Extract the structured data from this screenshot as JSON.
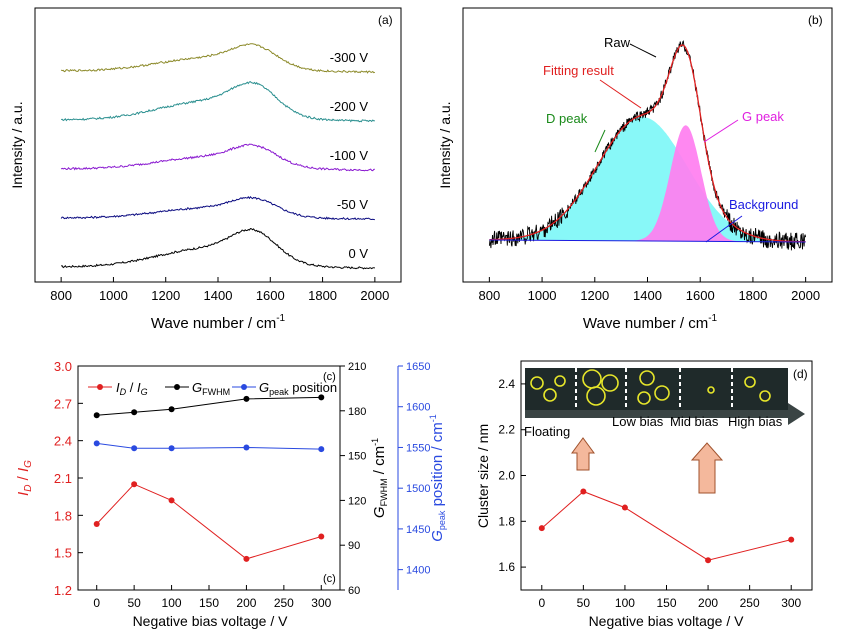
{
  "chart_data": [
    {
      "panel": "(a)",
      "type": "line",
      "xlabel": "Wave number / cm",
      "xlabel_sup": "-1",
      "ylabel": "Intensity / a.u.",
      "xlim": [
        700,
        2100
      ],
      "xticks": [
        800,
        1000,
        1200,
        1400,
        1600,
        1800,
        2000
      ],
      "y_ticks_shown": false,
      "series": [
        {
          "name": "0 V",
          "color": "#000000",
          "offset": 0.0,
          "amp": 0.62
        },
        {
          "name": "-50 V",
          "color": "#0a0a80",
          "offset": 1.0,
          "amp": 0.34
        },
        {
          "name": "-100 V",
          "color": "#8a1ad0",
          "offset": 2.0,
          "amp": 0.4
        },
        {
          "name": "-200 V",
          "color": "#2a8f8f",
          "offset": 3.0,
          "amp": 0.62
        },
        {
          "name": "-300 V",
          "color": "#8c8a2a",
          "offset": 4.0,
          "amp": 0.44
        }
      ]
    },
    {
      "panel": "(b)",
      "type": "area",
      "xlabel": "Wave number / cm",
      "xlabel_sup": "-1",
      "ylabel": "Intensity / a.u.",
      "xlim": [
        700,
        2100
      ],
      "xticks": [
        800,
        1000,
        1200,
        1400,
        1600,
        1800,
        2000
      ],
      "y_ticks_shown": false,
      "components": [
        {
          "name": "D peak",
          "center": 1380,
          "width": 170,
          "height": 0.62,
          "color": "#7ef7f7"
        },
        {
          "name": "G peak",
          "center": 1545,
          "width": 58,
          "height": 0.58,
          "color": "#ff7ef0"
        }
      ],
      "annotations": [
        {
          "text": "Raw",
          "color": "#000000"
        },
        {
          "text": "Fitting result",
          "color": "#e02020"
        },
        {
          "text": "D peak",
          "color": "#1a8a1a"
        },
        {
          "text": "G peak",
          "color": "#e020e0"
        },
        {
          "text": "Background",
          "color": "#1a1ae0"
        }
      ]
    },
    {
      "panel": "(c)",
      "type": "line",
      "xlabel": "Negative bias voltage / V",
      "x": [
        0,
        50,
        100,
        200,
        300
      ],
      "xlim": [
        -25,
        325
      ],
      "xticks": [
        0,
        50,
        100,
        150,
        200,
        250,
        300
      ],
      "legend": "top",
      "corner_labels": [
        "(c)",
        "(c)"
      ],
      "axes": {
        "left": {
          "label": "I_D / I_G",
          "color": "#e02020",
          "lim": [
            1.2,
            3.0
          ],
          "ticks": [
            "1.2",
            "1.5",
            "1.8",
            "2.1",
            "2.4",
            "2.7",
            "3.0"
          ]
        },
        "right1": {
          "label": "G_FWHM / cm-1",
          "color": "#000000",
          "lim": [
            60,
            210
          ],
          "ticks": [
            "60",
            "90",
            "120",
            "150",
            "180",
            "210"
          ]
        },
        "right2": {
          "label": "G_peak position / cm-1",
          "color": "#2a4ae0",
          "lim": [
            1375,
            1650
          ],
          "ticks": [
            "1400",
            "1450",
            "1500",
            "1550",
            "1600",
            "1650"
          ]
        }
      },
      "series": [
        {
          "name": "ID / IG",
          "axis": "left",
          "color": "#e02020",
          "values": [
            1.73,
            2.05,
            1.92,
            1.45,
            1.63
          ]
        },
        {
          "name": "GFWHM",
          "axis": "right1",
          "color": "#000000",
          "values": [
            177,
            179,
            181,
            188,
            189
          ]
        },
        {
          "name": "Gpeak position",
          "axis": "right2",
          "color": "#2a4ae0",
          "values": [
            1555,
            1549,
            1549,
            1550,
            1548
          ]
        }
      ]
    },
    {
      "panel": "(d)",
      "type": "line",
      "xlabel": "Negative bias voltage / V",
      "ylabel": "Cluster size / nm",
      "x": [
        0,
        50,
        100,
        200,
        300
      ],
      "xlim": [
        -25,
        325
      ],
      "ylim": [
        1.5,
        2.5
      ],
      "xticks": [
        0,
        50,
        100,
        150,
        200,
        250,
        300
      ],
      "yticks": [
        "1.6",
        "1.8",
        "2.0",
        "2.2",
        "2.4"
      ],
      "series": [
        {
          "name": "Cluster size",
          "color": "#e02020",
          "values": [
            1.77,
            1.93,
            1.86,
            1.63,
            1.72
          ]
        }
      ],
      "inset_labels": [
        "Floating",
        "Low bias",
        "Mid bias",
        "High bias"
      ],
      "corner_label": "(d)"
    }
  ]
}
